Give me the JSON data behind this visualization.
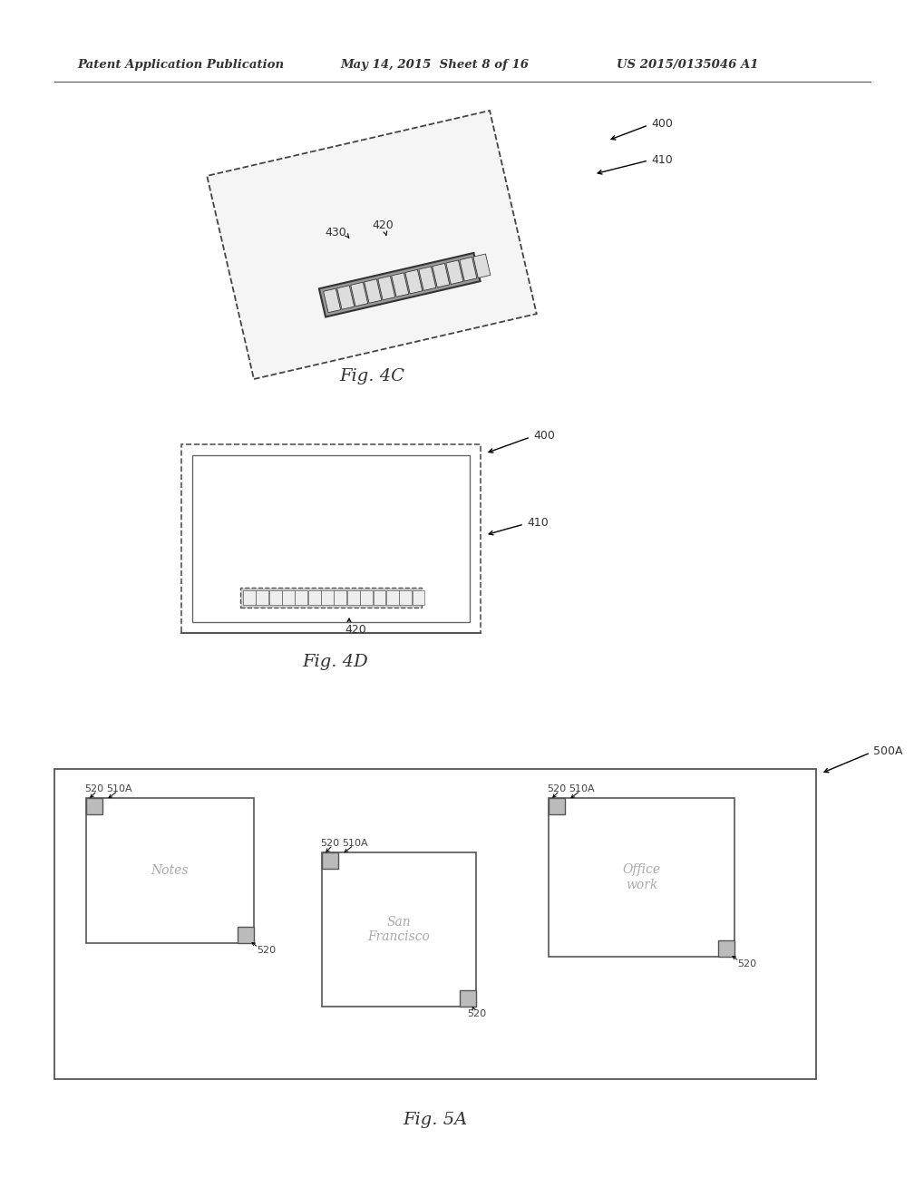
{
  "bg_color": "#ffffff",
  "header_left": "Patent Application Publication",
  "header_mid": "May 14, 2015  Sheet 8 of 16",
  "header_right": "US 2015/0135046 A1",
  "fig4c_label": "Fig. 4C",
  "fig4d_label": "Fig. 4D",
  "fig5a_label": "Fig. 5A",
  "note1_text": "Notes",
  "note2_text": "San\nFrancisco",
  "note3_text": "Office\nwork"
}
